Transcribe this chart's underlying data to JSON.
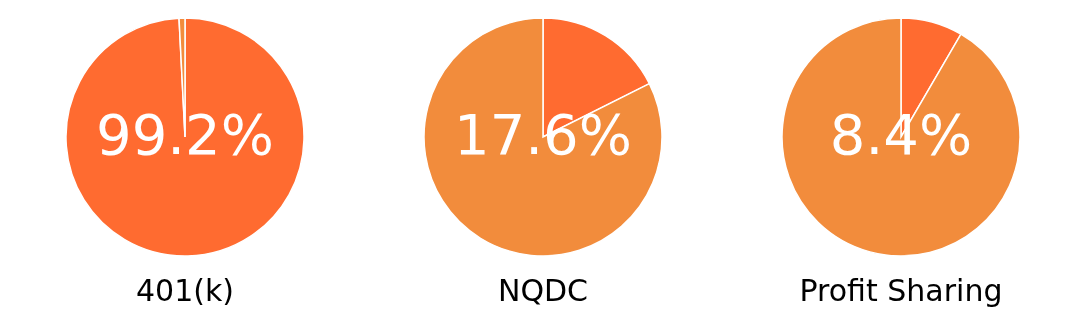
{
  "chart_data": [
    {
      "type": "pie",
      "title": "401(k)",
      "categories": [
        null,
        null
      ],
      "values": [
        99.2,
        0.8
      ],
      "colors": [
        "#ff6b30",
        "#f28c3c"
      ],
      "value_labels": [
        "99.2%",
        null
      ]
    },
    {
      "type": "pie",
      "title": "NQDC",
      "categories": [
        null,
        null
      ],
      "values": [
        17.6,
        82.4
      ],
      "colors": [
        "#ff6b30",
        "#f28c3c"
      ],
      "value_labels": [
        "17.6%",
        null
      ]
    },
    {
      "type": "pie",
      "title": "Profit Sharing",
      "categories": [
        null,
        null
      ],
      "values": [
        8.4,
        91.6
      ],
      "colors": [
        "#ff6b30",
        "#f28c3c"
      ],
      "value_labels": [
        "8.4%",
        null
      ]
    }
  ]
}
